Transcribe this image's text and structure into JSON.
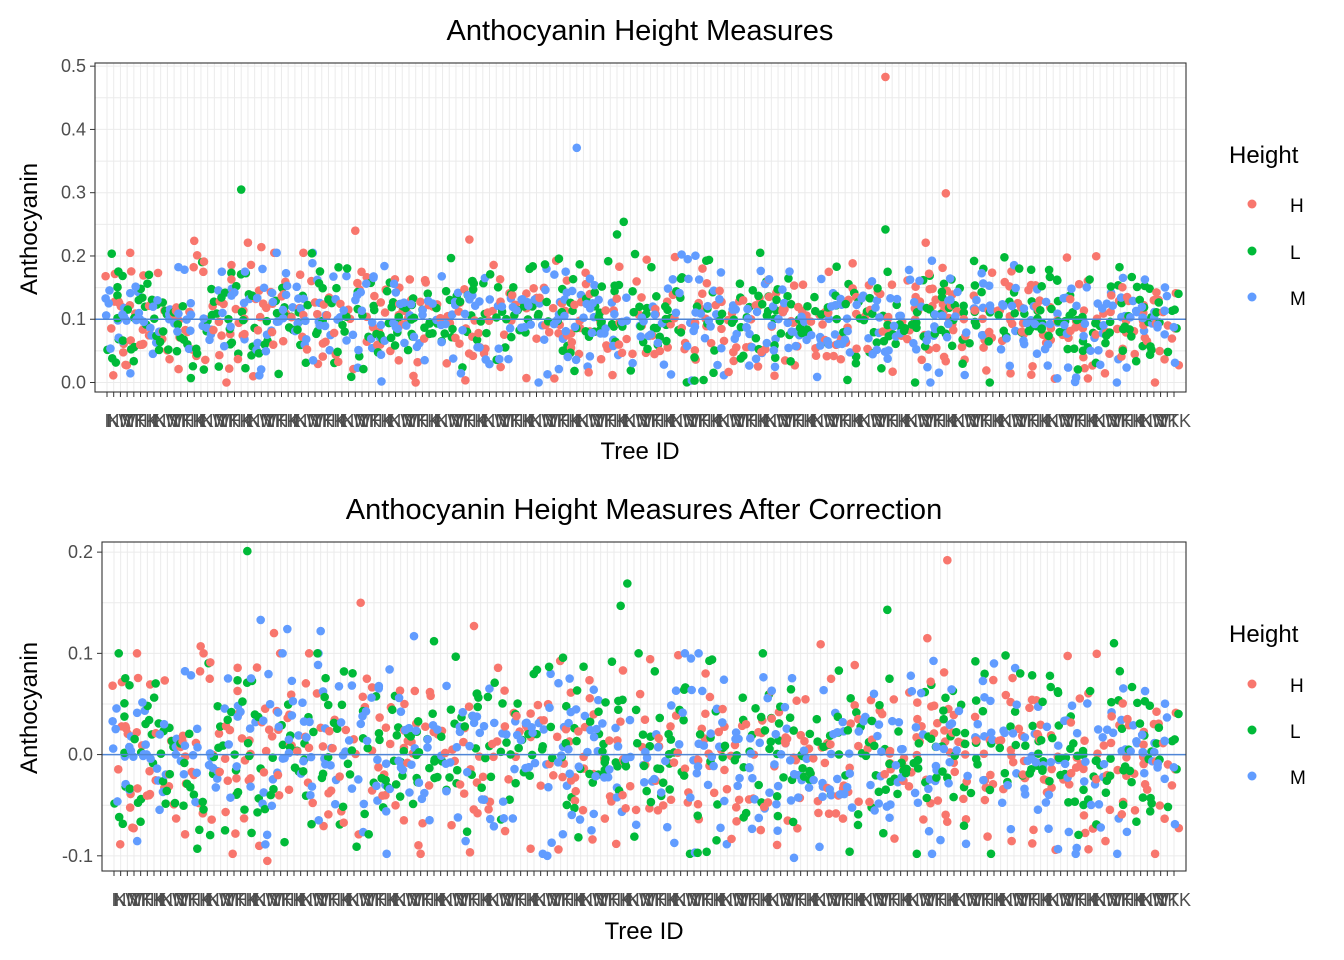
{
  "chart_data": [
    {
      "type": "scatter",
      "title": "Anthocyanin Height Measures",
      "xlabel": "Tree ID",
      "ylabel": "Anthocyanin",
      "ylim": [
        -0.015,
        0.505
      ],
      "yticks": [
        0.0,
        0.1,
        0.2,
        0.3,
        0.4,
        0.5
      ],
      "ytick_labels": [
        "0.0",
        "0.1",
        "0.2",
        "0.3",
        "0.4",
        "0.5"
      ],
      "grid": true,
      "legend_position": "right",
      "legend_title": "Height",
      "x_categories_count": 160,
      "hline": 0.1,
      "series": [
        {
          "name": "H",
          "color": "#F8766D"
        },
        {
          "name": "L",
          "color": "#00BA38"
        },
        {
          "name": "M",
          "color": "#619CFF"
        }
      ],
      "highlight_points": [
        {
          "series": "H",
          "x_index": 116,
          "y": 0.483
        },
        {
          "series": "M",
          "x_index": 70,
          "y": 0.371
        },
        {
          "series": "L",
          "x_index": 20,
          "y": 0.305
        },
        {
          "series": "H",
          "x_index": 125,
          "y": 0.299
        },
        {
          "series": "L",
          "x_index": 77,
          "y": 0.254
        },
        {
          "series": "L",
          "x_index": 116,
          "y": 0.242
        },
        {
          "series": "H",
          "x_index": 37,
          "y": 0.24
        },
        {
          "series": "L",
          "x_index": 76,
          "y": 0.234
        },
        {
          "series": "H",
          "x_index": 13,
          "y": 0.224
        },
        {
          "series": "H",
          "x_index": 54,
          "y": 0.226
        },
        {
          "series": "H",
          "x_index": 21,
          "y": 0.221
        },
        {
          "series": "H",
          "x_index": 122,
          "y": 0.221
        },
        {
          "series": "H",
          "x_index": 23,
          "y": 0.214
        }
      ],
      "x_tick_label_fragments": [
        "I",
        "K",
        "NM",
        "W",
        "YK",
        "TTK",
        "HK"
      ]
    },
    {
      "type": "scatter",
      "title": "Anthocyanin Height Measures After Correction",
      "xlabel": "Tree ID",
      "ylabel": "Anthocyanin",
      "ylim": [
        -0.115,
        0.21
      ],
      "yticks": [
        -0.1,
        0.0,
        0.1,
        0.2
      ],
      "ytick_labels": [
        "-0.1",
        "0.0",
        "0.1",
        "0.2"
      ],
      "grid": true,
      "legend_position": "right",
      "legend_title": "Height",
      "x_categories_count": 160,
      "hline": 0.0,
      "series": [
        {
          "name": "H",
          "color": "#F8766D"
        },
        {
          "name": "L",
          "color": "#00BA38"
        },
        {
          "name": "M",
          "color": "#619CFF"
        }
      ],
      "highlight_points": [
        {
          "series": "L",
          "x_index": 20,
          "y": 0.201
        },
        {
          "series": "H",
          "x_index": 125,
          "y": 0.192
        },
        {
          "series": "L",
          "x_index": 77,
          "y": 0.169
        },
        {
          "series": "L",
          "x_index": 76,
          "y": 0.147
        },
        {
          "series": "H",
          "x_index": 37,
          "y": 0.15
        },
        {
          "series": "L",
          "x_index": 116,
          "y": 0.143
        },
        {
          "series": "M",
          "x_index": 22,
          "y": 0.133
        },
        {
          "series": "H",
          "x_index": 54,
          "y": 0.127
        },
        {
          "series": "M",
          "x_index": 26,
          "y": 0.124
        },
        {
          "series": "M",
          "x_index": 31,
          "y": 0.122
        },
        {
          "series": "H",
          "x_index": 24,
          "y": 0.12
        },
        {
          "series": "M",
          "x_index": 45,
          "y": 0.117
        },
        {
          "series": "H",
          "x_index": 122,
          "y": 0.115
        },
        {
          "series": "L",
          "x_index": 48,
          "y": 0.112
        },
        {
          "series": "L",
          "x_index": 150,
          "y": 0.11
        },
        {
          "series": "H",
          "x_index": 106,
          "y": 0.109
        },
        {
          "series": "H",
          "x_index": 13,
          "y": 0.107
        },
        {
          "series": "M",
          "x_index": 132,
          "y": 0.09
        },
        {
          "series": "H",
          "x_index": 23,
          "y": -0.105
        },
        {
          "series": "M",
          "x_index": 102,
          "y": -0.102
        },
        {
          "series": "M",
          "x_index": 65,
          "y": -0.1
        }
      ],
      "x_tick_label_fragments": [
        "I",
        "K",
        "NM",
        "W",
        "YK",
        "TTK",
        "HK"
      ]
    }
  ]
}
